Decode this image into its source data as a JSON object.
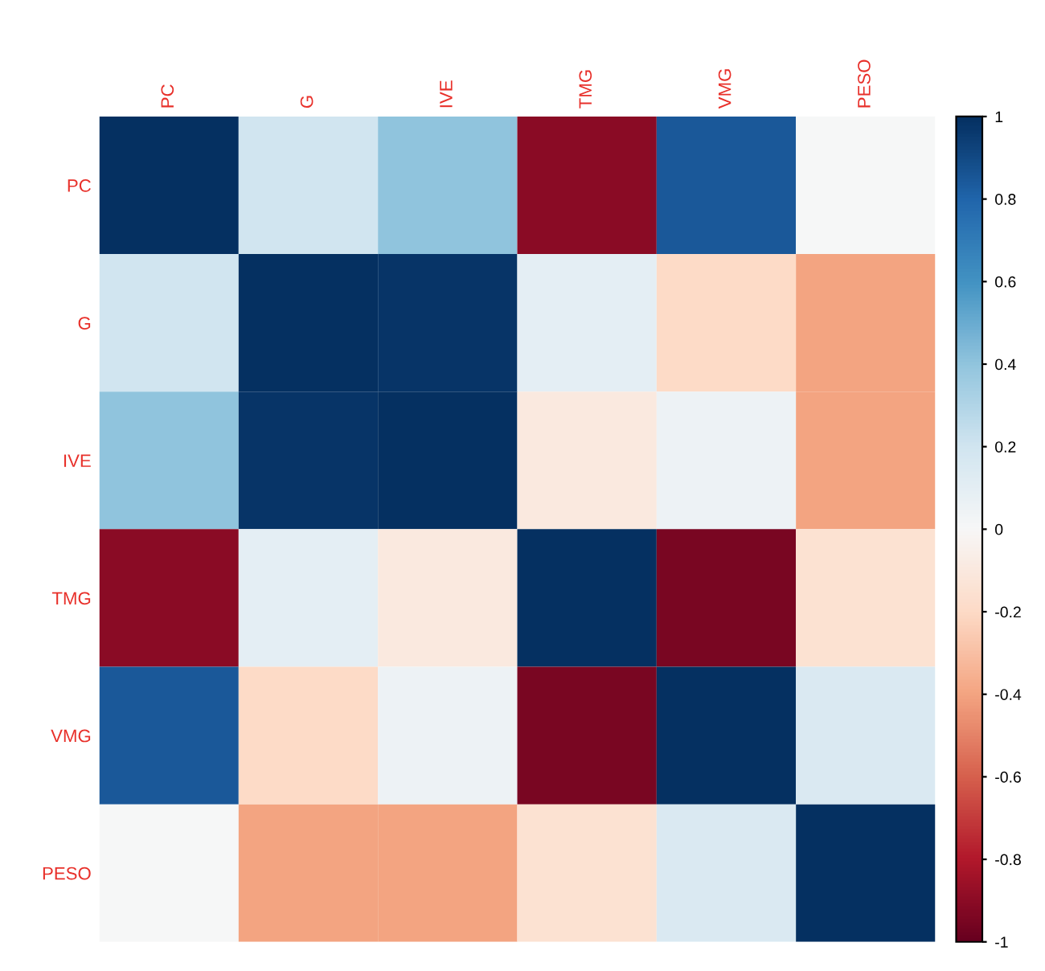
{
  "chart_data": {
    "type": "heatmap",
    "categories": [
      "PC",
      "G",
      "IVE",
      "TMG",
      "VMG",
      "PESO"
    ],
    "y_categories": [
      "PC",
      "G",
      "IVE",
      "TMG",
      "VMG",
      "PESO"
    ],
    "cells": [
      [
        1,
        0.2,
        0.4,
        -0.9,
        0.85,
        0.0
      ],
      [
        0.2,
        1,
        0.98,
        0.1,
        -0.2,
        -0.4
      ],
      [
        0.4,
        0.98,
        1,
        -0.1,
        0.05,
        -0.4
      ],
      [
        -0.9,
        0.1,
        -0.1,
        1,
        -0.95,
        -0.15
      ],
      [
        0.85,
        -0.2,
        0.05,
        -0.95,
        1,
        0.15
      ],
      [
        0.0,
        -0.4,
        -0.4,
        -0.15,
        0.15,
        1
      ]
    ],
    "clim": [
      -1,
      1
    ],
    "cticks": [
      -1,
      -0.8,
      -0.6,
      -0.4,
      -0.2,
      0,
      0.2,
      0.4,
      0.6,
      0.8,
      1
    ]
  }
}
